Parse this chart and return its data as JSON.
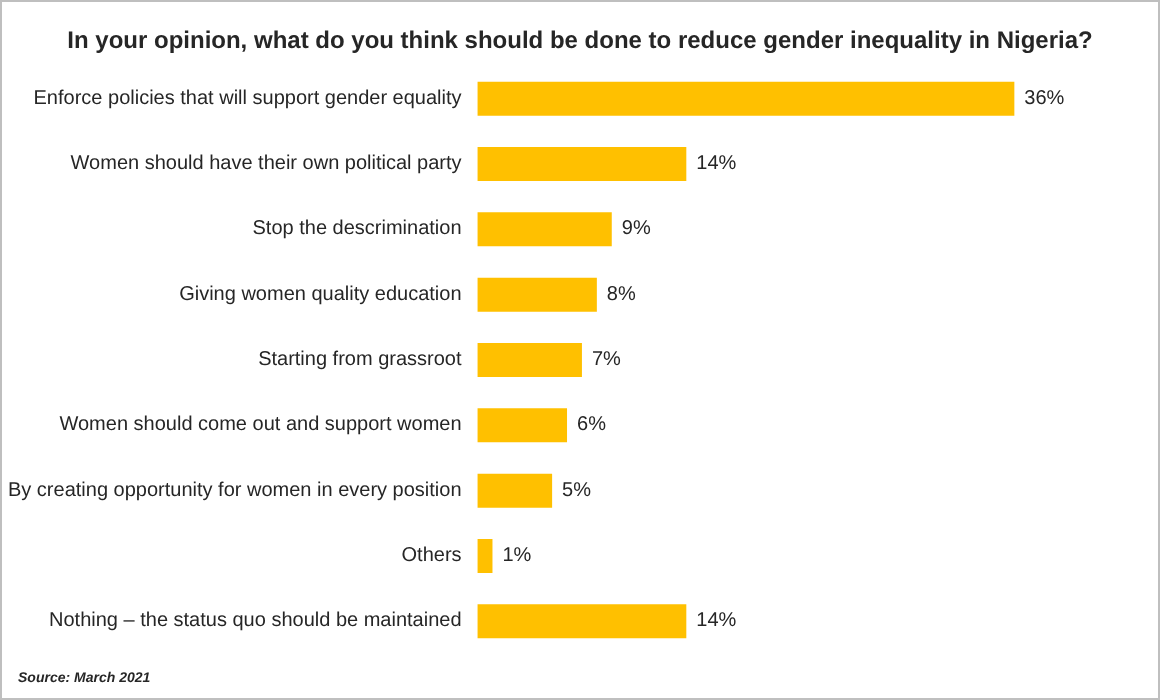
{
  "chart_data": {
    "type": "bar",
    "orientation": "horizontal",
    "title": "In your opinion, what do you think should be done to reduce gender inequality in Nigeria?",
    "categories": [
      "Enforce policies that will support gender equality",
      "Women should have their own political party",
      "Stop the descrimination",
      "Giving women quality education",
      "Starting from grassroot",
      "Women should come out and support women",
      "By creating opportunity for women in every position",
      "Others",
      "Nothing – the status quo should be maintained"
    ],
    "values": [
      36,
      14,
      9,
      8,
      7,
      6,
      5,
      1,
      14
    ],
    "value_labels": [
      "36%",
      "14%",
      "9%",
      "8%",
      "7%",
      "6%",
      "5%",
      "1%",
      "14%"
    ],
    "color": "#ffc000",
    "annotations": [
      "Source: March 2021"
    ]
  }
}
